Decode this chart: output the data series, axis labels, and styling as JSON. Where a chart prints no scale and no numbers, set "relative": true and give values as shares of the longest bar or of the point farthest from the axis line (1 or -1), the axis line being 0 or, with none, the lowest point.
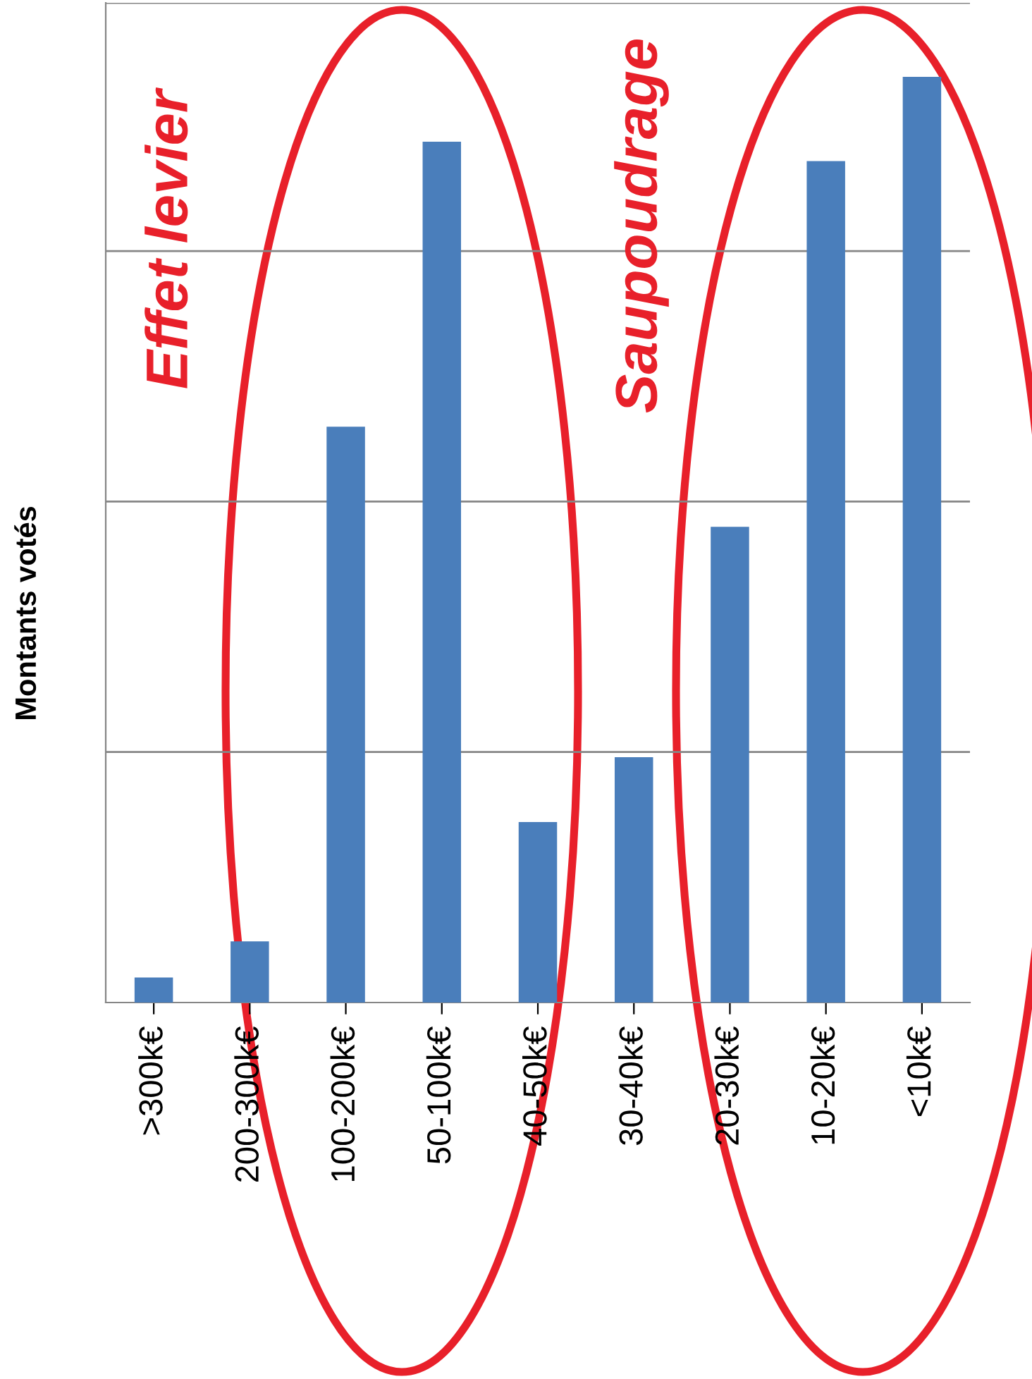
{
  "chart_data": {
    "type": "bar",
    "relative": true,
    "ylabel": "Montants votés",
    "categories": [
      ">300k€",
      "200-300k€",
      "100-200k€",
      "50-100k€",
      "40-50k€",
      "30-40k€",
      "20-30k€",
      "10-20k€",
      "<10k€"
    ],
    "values": [
      0.027,
      0.066,
      0.622,
      0.93,
      0.195,
      0.265,
      0.514,
      0.909,
      1
    ],
    "color": "#4a7ebb",
    "grid": "y",
    "annotations": [
      "Effet levier",
      "Saupoudrage"
    ]
  }
}
